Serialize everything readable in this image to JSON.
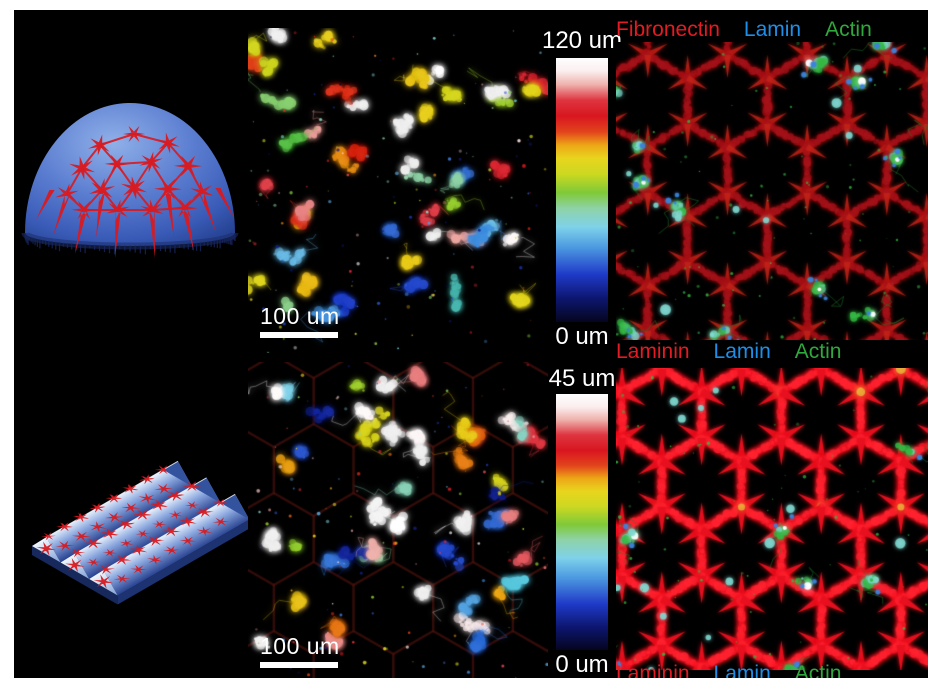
{
  "figure": {
    "description_visible_text_only": true
  },
  "colors": {
    "page_bg": "#ffffff",
    "figure_bg": "#000000",
    "white_text": "#ffffff",
    "stain_red": "#e31b22",
    "stain_blue": "#1e8fe8",
    "stain_green": "#2fa83c",
    "lattice_red_bright": "#e8101f",
    "lattice_red_bead": "#ff2330",
    "lattice_red_dim": "#a5131a",
    "lattice_red_dim_bead": "#c22218",
    "cell_green": "#35b843",
    "cell_green_dim": "#1d7a28",
    "cell_cyan": "#7fd8d0",
    "nucleus_blue": "#3b82d8",
    "hot_white": "#ffffff",
    "hot_yellow": "#e8e040",
    "dome_blue_light": "#8fb0e8",
    "dome_blue_mid": "#5b7dd0",
    "dome_blue_deep": "#3a5cb8",
    "dome_blue_dark": "#24408f",
    "scaffold_star_red": "#d81a20"
  },
  "colormap_stops": [
    [
      0.0,
      "#05051e"
    ],
    [
      0.09,
      "#0d1670"
    ],
    [
      0.18,
      "#1f3ac8"
    ],
    [
      0.28,
      "#4b97e0"
    ],
    [
      0.36,
      "#7fd2ea"
    ],
    [
      0.43,
      "#8ed2a8"
    ],
    [
      0.49,
      "#7fc938"
    ],
    [
      0.56,
      "#ccd821"
    ],
    [
      0.62,
      "#e8d51e"
    ],
    [
      0.67,
      "#eda716"
    ],
    [
      0.72,
      "#e2441c"
    ],
    [
      0.78,
      "#d8161f"
    ],
    [
      0.84,
      "#de3540"
    ],
    [
      0.9,
      "#efb3ad"
    ],
    [
      0.95,
      "#fbeeee"
    ],
    [
      1.0,
      "#ffffff"
    ]
  ],
  "colorbars": {
    "top": {
      "max_label": "120 um",
      "min_label": "0 um"
    },
    "bottom": {
      "max_label": "45 um",
      "min_label": "0 um"
    }
  },
  "scale_bars": {
    "top": {
      "label": "100 um"
    },
    "bottom": {
      "label": "100 um"
    }
  },
  "stain_rows": {
    "top": [
      {
        "text": "Fibronectin",
        "color_key": "stain_red"
      },
      {
        "text": "Lamin",
        "color_key": "stain_blue"
      },
      {
        "text": "Actin",
        "color_key": "stain_green"
      }
    ],
    "middle": [
      {
        "text": "Laminin",
        "color_key": "stain_red"
      },
      {
        "text": "Lamin",
        "color_key": "stain_blue"
      },
      {
        "text": "Actin",
        "color_key": "stain_green"
      }
    ],
    "bottom": [
      {
        "text": "Laminin",
        "color_key": "stain_red"
      },
      {
        "text": "Lamin",
        "color_key": "stain_blue"
      },
      {
        "text": "Actin",
        "color_key": "stain_green"
      }
    ]
  }
}
